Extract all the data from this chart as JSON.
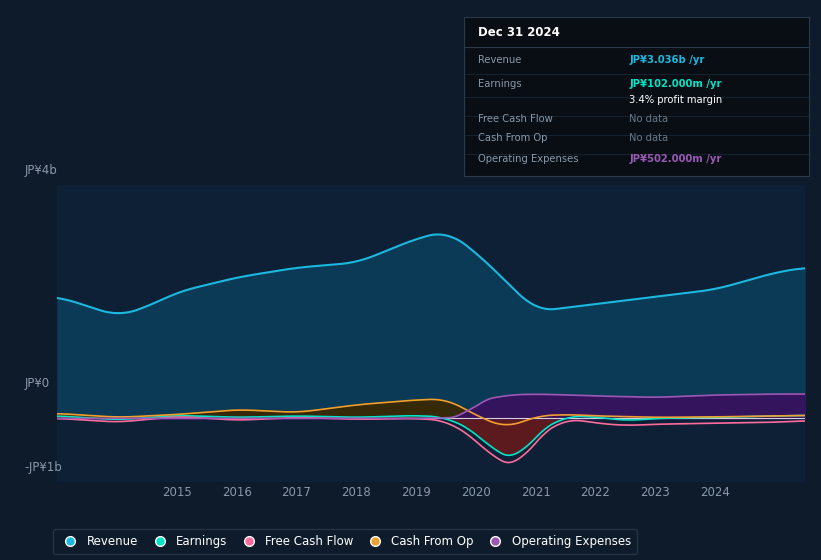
{
  "bg_color": "#0d1b2a",
  "plot_bg": "#0d2035",
  "ylim": [
    -1300000000.0,
    4800000000.0
  ],
  "xlim": [
    2013.0,
    2025.5
  ],
  "yticks": [
    -1000000000.0,
    0,
    4000000000.0
  ],
  "ytick_labels": [
    "-JP¥1b",
    "JP¥0",
    "JP¥4b"
  ],
  "xtick_positions": [
    2015,
    2016,
    2017,
    2018,
    2019,
    2020,
    2021,
    2022,
    2023,
    2024
  ],
  "xtick_labels": [
    "2015",
    "2016",
    "2017",
    "2018",
    "2019",
    "2020",
    "2021",
    "2022",
    "2023",
    "2024"
  ],
  "revenue_color": "#1cb8e0",
  "revenue_fill": "#0a3a55",
  "earnings_color": "#00e5c8",
  "earnings_fill_pos": "#1a4a3a",
  "earnings_fill_neg": "#6b1a1a",
  "fcf_color": "#ff6b9d",
  "cashfromop_color": "#f0a030",
  "cashfromop_fill": "#3a2800",
  "opex_color": "#9b59b6",
  "opex_fill": "#3a1060",
  "legend_items": [
    "Revenue",
    "Earnings",
    "Free Cash Flow",
    "Cash From Op",
    "Operating Expenses"
  ],
  "legend_colors": [
    "#1cb8e0",
    "#00e5c8",
    "#ff6b9d",
    "#f0a030",
    "#9b59b6"
  ]
}
